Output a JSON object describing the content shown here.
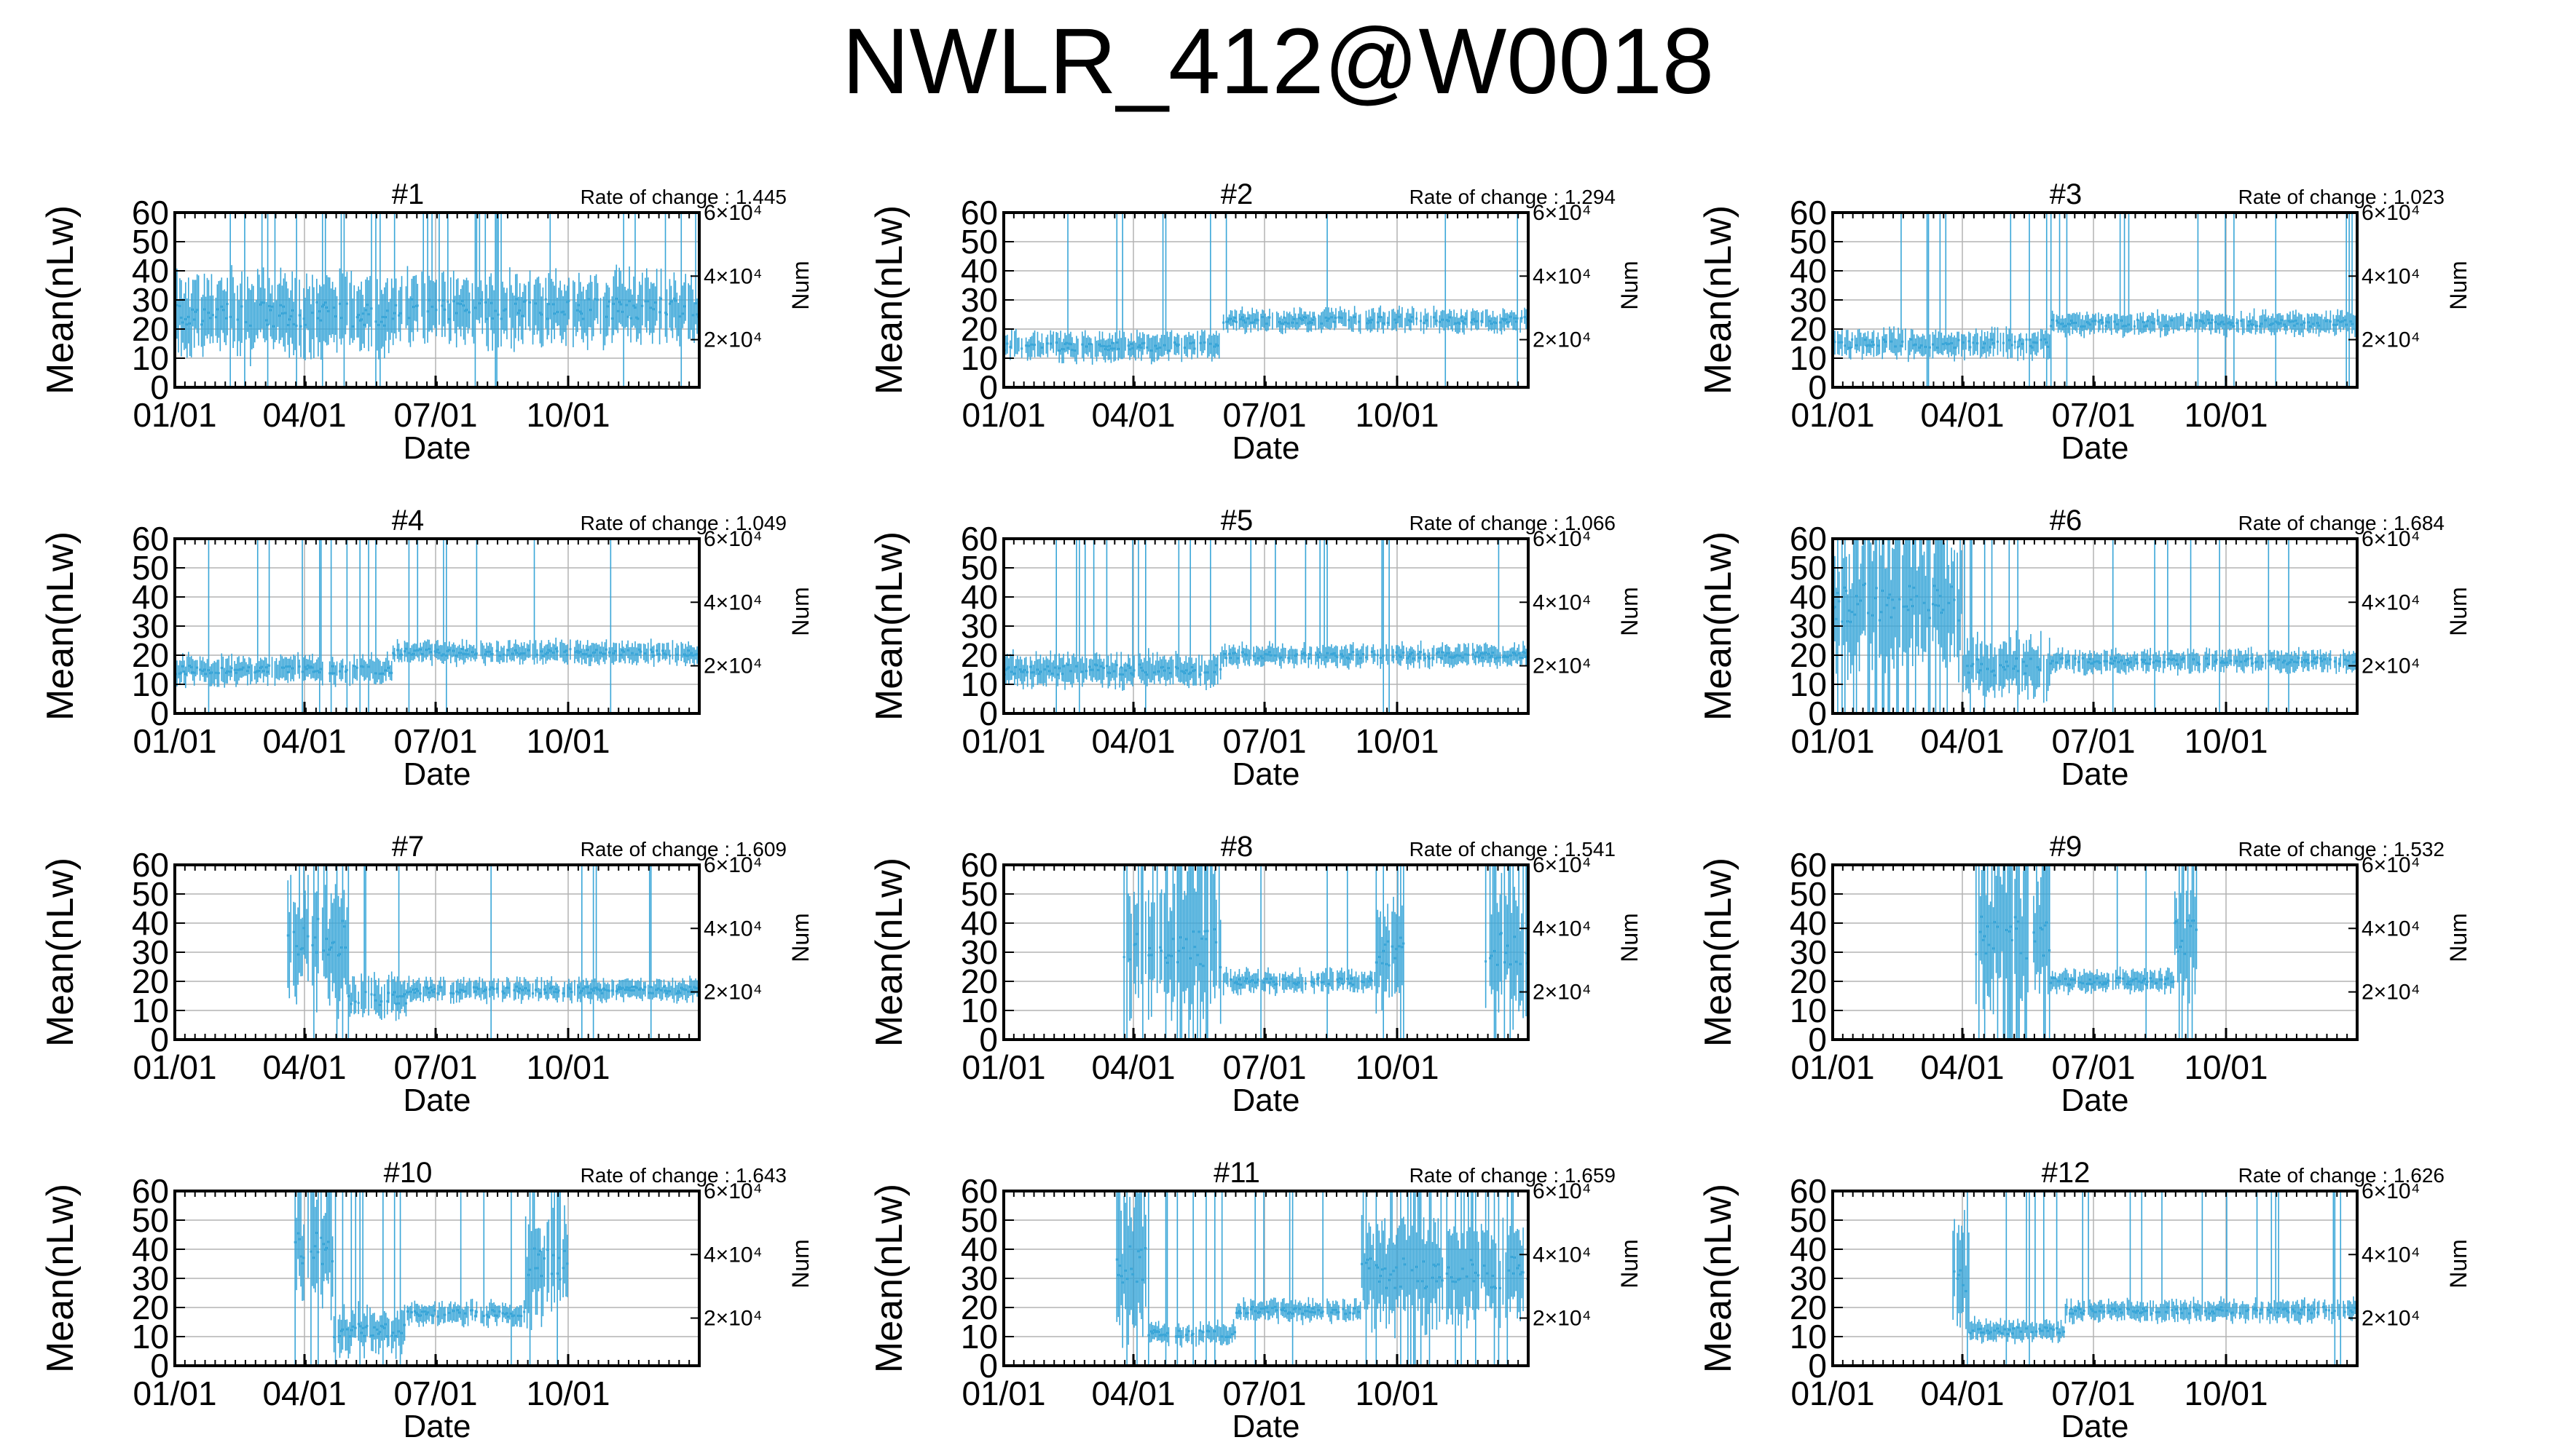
{
  "title": "NWLR_412@W0018",
  "colors": {
    "series": "#3aa6d8",
    "axis": "#000000",
    "grid": "#b4b4b4"
  },
  "shared_axes": {
    "xlabel": "Date",
    "ylabel": "Mean(nLw)",
    "y2label": "Num",
    "xticks": [
      "01/01",
      "04/01",
      "07/01",
      "10/01"
    ],
    "yticks": [
      "0",
      "10",
      "20",
      "30",
      "40",
      "50",
      "60"
    ],
    "y2ticks": [
      "2×10⁴",
      "4×10⁴",
      "6×10⁴"
    ],
    "ylim": [
      0,
      60
    ],
    "xrange": "01/01–12/31",
    "grid": true
  },
  "chart_data": [
    {
      "type": "scatter",
      "name": "#1",
      "rate_label": "Rate of change : 1.445",
      "segments": [
        {
          "from": "01/01",
          "to": "05/31",
          "center": 25,
          "spread": 14,
          "spike": 0.12
        },
        {
          "from": "06/01",
          "to": "12/31",
          "center": 27,
          "spread": 12,
          "spike": 0.1
        }
      ]
    },
    {
      "type": "scatter",
      "name": "#2",
      "rate_label": "Rate of change : 1.294",
      "segments": [
        {
          "from": "01/01",
          "to": "05/31",
          "center": 14,
          "spread": 5,
          "spike": 0.06
        },
        {
          "from": "06/01",
          "to": "12/31",
          "center": 23,
          "spread": 4,
          "spike": 0.04
        }
      ]
    },
    {
      "type": "scatter",
      "name": "#3",
      "rate_label": "Rate of change : 1.023",
      "segments": [
        {
          "from": "01/01",
          "to": "05/31",
          "center": 15,
          "spread": 5,
          "spike": 0.06
        },
        {
          "from": "06/01",
          "to": "12/31",
          "center": 22,
          "spread": 4,
          "spike": 0.04
        }
      ]
    },
    {
      "type": "scatter",
      "name": "#4",
      "rate_label": "Rate of change : 1.049",
      "segments": [
        {
          "from": "01/01",
          "to": "05/31",
          "center": 15,
          "spread": 5,
          "spike": 0.05
        },
        {
          "from": "06/01",
          "to": "12/31",
          "center": 21,
          "spread": 4,
          "spike": 0.04
        }
      ]
    },
    {
      "type": "scatter",
      "name": "#5",
      "rate_label": "Rate of change : 1.066",
      "segments": [
        {
          "from": "01/01",
          "to": "05/31",
          "center": 15,
          "spread": 6,
          "spike": 0.05
        },
        {
          "from": "06/01",
          "to": "12/31",
          "center": 20,
          "spread": 4,
          "spike": 0.04
        }
      ]
    },
    {
      "type": "scatter",
      "name": "#6",
      "rate_label": "Rate of change : 1.684",
      "segments": [
        {
          "from": "01/01",
          "to": "03/31",
          "center": 38,
          "spread": 22,
          "spike": 0.4
        },
        {
          "from": "04/01",
          "to": "05/31",
          "center": 16,
          "spread": 10,
          "spike": 0.15
        },
        {
          "from": "06/01",
          "to": "12/31",
          "center": 18,
          "spread": 4,
          "spike": 0.03
        }
      ]
    },
    {
      "type": "scatter",
      "name": "#7",
      "rate_label": "Rate of change : 1.609",
      "segments": [
        {
          "from": "03/20",
          "to": "04/30",
          "center": 35,
          "spread": 22,
          "spike": 0.4
        },
        {
          "from": "05/01",
          "to": "06/10",
          "center": 14,
          "spread": 8,
          "spike": 0.15
        },
        {
          "from": "06/11",
          "to": "12/31",
          "center": 17,
          "spread": 4,
          "spike": 0.03
        }
      ]
    },
    {
      "type": "scatter",
      "name": "#8",
      "rate_label": "Rate of change : 1.541",
      "segments": [
        {
          "from": "03/25",
          "to": "05/31",
          "center": 32,
          "spread": 24,
          "spike": 0.45
        },
        {
          "from": "06/01",
          "to": "09/15",
          "center": 20,
          "spread": 4,
          "spike": 0.05
        },
        {
          "from": "09/16",
          "to": "10/05",
          "center": 30,
          "spread": 18,
          "spike": 0.3
        },
        {
          "from": "12/01",
          "to": "12/31",
          "center": 30,
          "spread": 22,
          "spike": 0.4
        }
      ]
    },
    {
      "type": "scatter",
      "name": "#9",
      "rate_label": "Rate of change : 1.532",
      "segments": [
        {
          "from": "04/10",
          "to": "05/31",
          "center": 35,
          "spread": 24,
          "spike": 0.45
        },
        {
          "from": "06/01",
          "to": "08/25",
          "center": 20,
          "spread": 4,
          "spike": 0.05
        },
        {
          "from": "08/26",
          "to": "09/10",
          "center": 35,
          "spread": 20,
          "spike": 0.3
        }
      ]
    },
    {
      "type": "scatter",
      "name": "#10",
      "rate_label": "Rate of change : 1.643",
      "segments": [
        {
          "from": "03/25",
          "to": "04/20",
          "center": 40,
          "spread": 20,
          "spike": 0.4
        },
        {
          "from": "04/21",
          "to": "06/10",
          "center": 12,
          "spread": 8,
          "spike": 0.15
        },
        {
          "from": "06/11",
          "to": "08/31",
          "center": 18,
          "spread": 4,
          "spike": 0.04
        },
        {
          "from": "09/01",
          "to": "09/30",
          "center": 35,
          "spread": 18,
          "spike": 0.3
        }
      ]
    },
    {
      "type": "scatter",
      "name": "#11",
      "rate_label": "Rate of change : 1.659",
      "segments": [
        {
          "from": "03/20",
          "to": "04/10",
          "center": 35,
          "spread": 24,
          "spike": 0.45
        },
        {
          "from": "04/11",
          "to": "06/10",
          "center": 11,
          "spread": 4,
          "spike": 0.05
        },
        {
          "from": "06/11",
          "to": "09/05",
          "center": 19,
          "spread": 4,
          "spike": 0.05
        },
        {
          "from": "09/06",
          "to": "12/31",
          "center": 32,
          "spread": 18,
          "spike": 0.3
        }
      ]
    },
    {
      "type": "scatter",
      "name": "#12",
      "rate_label": "Rate of change : 1.626",
      "segments": [
        {
          "from": "03/25",
          "to": "04/05",
          "center": 30,
          "spread": 20,
          "spike": 0.4
        },
        {
          "from": "04/06",
          "to": "06/10",
          "center": 12,
          "spread": 4,
          "spike": 0.05
        },
        {
          "from": "06/11",
          "to": "12/31",
          "center": 19,
          "spread": 4,
          "spike": 0.04
        }
      ]
    }
  ]
}
